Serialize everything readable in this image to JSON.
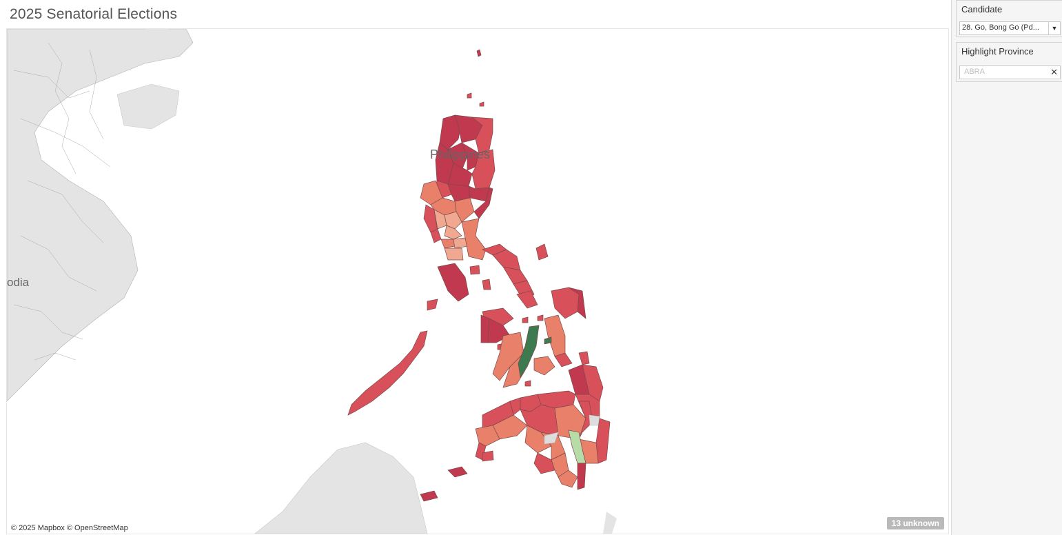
{
  "header": {
    "title": "2025 Senatorial Elections"
  },
  "map": {
    "country_label": "Philippines",
    "neighbor_label": "odia",
    "attribution": "© 2025 Mapbox © OpenStreetMap",
    "unknown_badge": "13 unknown",
    "colors": {
      "dark": "#c0394f",
      "mid": "#d8505a",
      "light": "#e8806a",
      "pale": "#f0a890",
      "green_dark": "#3d7a50",
      "green_light": "#b8dca8",
      "land_gray": "#e4e4e4",
      "border": "#7a4a4a"
    }
  },
  "filters": {
    "candidate": {
      "title": "Candidate",
      "selected": "28. Go, Bong Go   (Pd..."
    },
    "highlight_province": {
      "title": "Highlight Province",
      "placeholder": "ABRA"
    }
  }
}
